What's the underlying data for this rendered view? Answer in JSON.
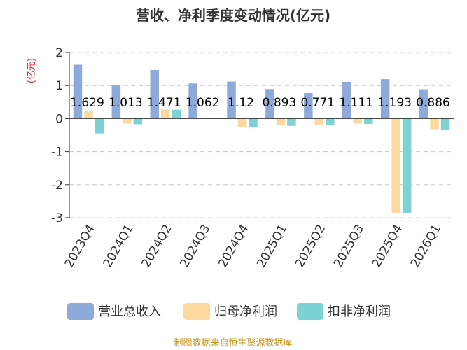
{
  "chart_data": {
    "type": "bar",
    "title": "营收、净利季度变动情况(亿元)",
    "unit_label": "(亿元)",
    "categories": [
      "2023Q4",
      "2024Q1",
      "2024Q2",
      "2024Q3",
      "2024Q4",
      "2025Q1",
      "2025Q2",
      "2025Q3",
      "2025Q4",
      "2026Q1"
    ],
    "series": [
      {
        "name": "营业总收入",
        "color": "#8eaadb",
        "values": [
          1.629,
          1.013,
          1.471,
          1.062,
          1.12,
          0.893,
          0.771,
          1.111,
          1.193,
          0.886
        ]
      },
      {
        "name": "归母净利润",
        "color": "#fdd9a0",
        "values": [
          0.23,
          -0.15,
          0.28,
          0.03,
          -0.27,
          -0.2,
          -0.18,
          -0.15,
          -2.85,
          -0.32
        ]
      },
      {
        "name": "扣非净利润",
        "color": "#7dd3d3",
        "values": [
          -0.45,
          -0.17,
          0.27,
          0.03,
          -0.27,
          -0.22,
          -0.2,
          -0.16,
          -2.85,
          -0.35
        ]
      }
    ],
    "value_labels": [
      "1.629",
      "1.013",
      "1.471",
      "1.062",
      "1.12",
      "0.893",
      "0.771",
      "1.111",
      "1.193",
      "0.886"
    ],
    "yticks": [
      2,
      1,
      0,
      -1,
      -2,
      -3
    ],
    "ylim": [
      -3,
      2
    ],
    "grid": true,
    "legend_position": "bottom",
    "source": "制图数据来自恒生聚源数据库"
  }
}
